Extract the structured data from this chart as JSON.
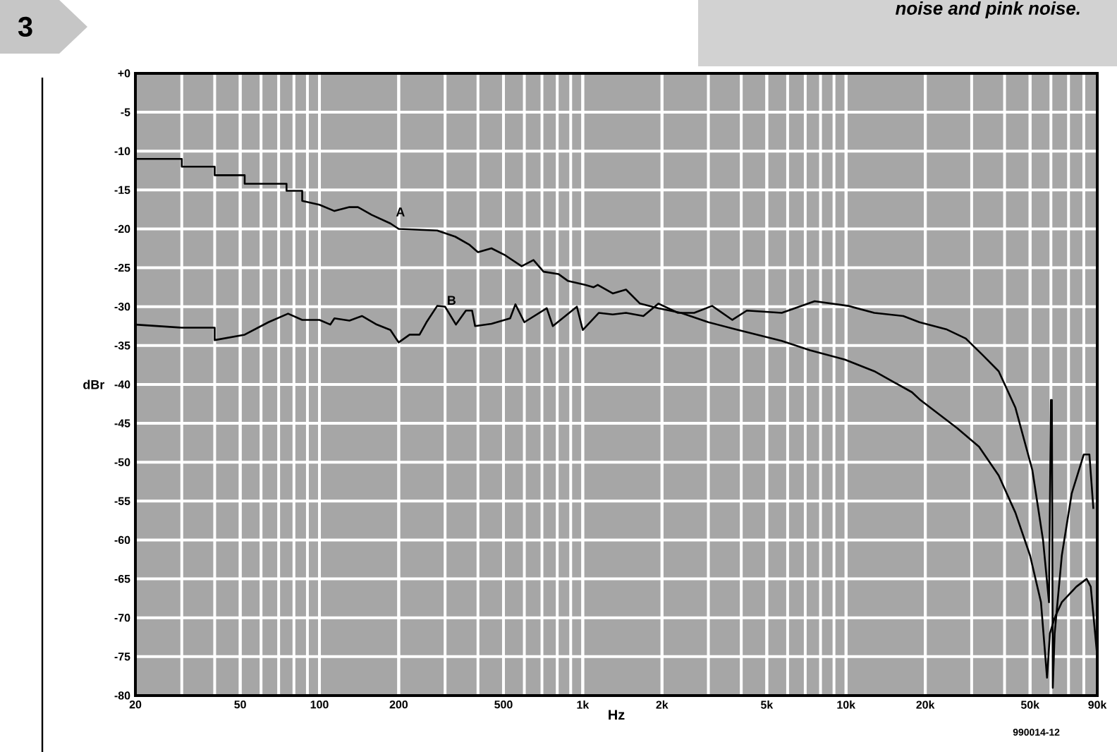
{
  "chart_data": {
    "type": "line",
    "title": "3",
    "annotations": [
      "noise and pink noise.",
      "990014-12"
    ],
    "xlabel": "Hz",
    "ylabel": "dBr",
    "log": "x",
    "grid": true,
    "xlim": [
      20,
      90000
    ],
    "ylim": [
      -80,
      0
    ],
    "xticks": [
      20,
      50,
      100,
      200,
      500,
      {
        "value": 1000,
        "label": "1k"
      },
      {
        "value": 2000,
        "label": "2k"
      },
      {
        "value": 5000,
        "label": "5k"
      },
      {
        "value": 10000,
        "label": "10k"
      },
      {
        "value": 20000,
        "label": "20k"
      },
      {
        "value": 50000,
        "label": "50k"
      },
      {
        "value": 90000,
        "label": "90k"
      }
    ],
    "yticks": [
      {
        "value": 0,
        "label": "+0"
      },
      -5,
      -10,
      -15,
      -20,
      -25,
      -30,
      -35,
      -40,
      -45,
      -50,
      -55,
      -60,
      -65,
      -70,
      -75,
      -80
    ],
    "series": [
      {
        "name": "A",
        "color": "#000000",
        "x": [
          20,
          30,
          30,
          40,
          40,
          52,
          52,
          75,
          75,
          86,
          86,
          100,
          114,
          130,
          140,
          158,
          186,
          200,
          280,
          328,
          370,
          400,
          450,
          508,
          586,
          650,
          710,
          808,
          880,
          1020,
          1100,
          1140,
          1300,
          1460,
          1650,
          1940,
          2360,
          3000,
          3800,
          5700,
          7300,
          9900,
          12800,
          17800,
          19000,
          26400,
          32000,
          38000,
          44000,
          50000,
          55000,
          58000,
          59500,
          62000,
          66000,
          75000,
          82000,
          85000,
          90000
        ],
        "values": [
          -11,
          -11,
          -12,
          -12,
          -13.1,
          -13.1,
          -14.2,
          -14.2,
          -15.1,
          -15.1,
          -16.4,
          -16.9,
          -17.7,
          -17.2,
          -17.2,
          -18.2,
          -19.3,
          -20,
          -20.2,
          -21,
          -22,
          -23,
          -22.5,
          -23.4,
          -24.8,
          -24,
          -25.5,
          -25.8,
          -26.7,
          -27.2,
          -27.5,
          -27.2,
          -28.3,
          -27.8,
          -29.6,
          -30.2,
          -30.8,
          -32,
          -32.9,
          -34.4,
          -35.6,
          -36.8,
          -38.3,
          -41,
          -41.9,
          -45.6,
          -48,
          -51.7,
          -56.5,
          -62,
          -68,
          -77.7,
          -72,
          -70,
          -68,
          -66,
          -65,
          -66,
          -75
        ]
      },
      {
        "name": "B",
        "color": "#000000",
        "x": [
          20,
          30,
          40,
          40,
          52,
          64,
          76,
          86,
          100,
          110,
          114,
          130,
          145,
          165,
          186,
          200,
          220,
          240,
          255,
          280,
          300,
          330,
          360,
          380,
          390,
          450,
          530,
          555,
          600,
          730,
          770,
          950,
          1000,
          1150,
          1300,
          1460,
          1700,
          1940,
          2300,
          2650,
          3100,
          3700,
          4200,
          5700,
          7600,
          10200,
          12800,
          16500,
          19000,
          24000,
          28500,
          33000,
          38000,
          44000,
          51000,
          56000,
          59000,
          60000,
          60500,
          61000,
          62000,
          66000,
          72000,
          80000,
          84000,
          87000
        ],
        "values": [
          -32.3,
          -32.7,
          -32.7,
          -34.3,
          -33.6,
          -32,
          -30.9,
          -31.7,
          -31.7,
          -32.3,
          -31.5,
          -31.8,
          -31.2,
          -32.3,
          -33,
          -34.6,
          -33.6,
          -33.6,
          -32,
          -29.9,
          -30,
          -32.3,
          -30.5,
          -30.5,
          -32.5,
          -32.2,
          -31.5,
          -29.7,
          -32,
          -30.2,
          -32.5,
          -30,
          -33,
          -30.8,
          -31,
          -30.8,
          -31.2,
          -29.6,
          -30.8,
          -30.8,
          -29.9,
          -31.7,
          -30.5,
          -30.8,
          -29.3,
          -29.9,
          -30.8,
          -31.2,
          -32,
          -32.9,
          -34.1,
          -36.2,
          -38.3,
          -43,
          -51,
          -60,
          -68,
          -42,
          -42,
          -79,
          -72,
          -62,
          -54,
          -49,
          -49,
          -56
        ]
      }
    ]
  }
}
